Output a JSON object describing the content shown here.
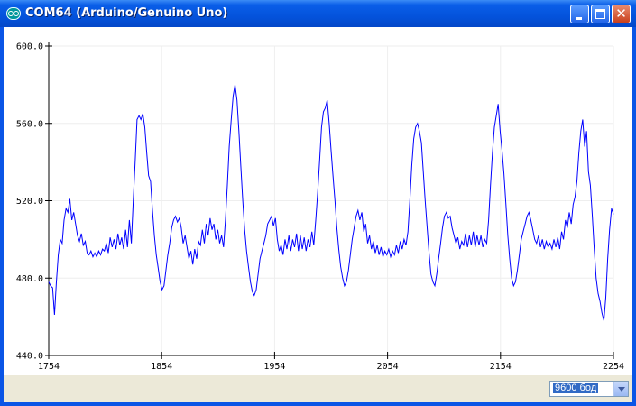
{
  "window": {
    "title": "COM64 (Arduino/Genuino Uno)",
    "icon": "arduino-icon"
  },
  "controls": {
    "minimize": "minimize-icon",
    "maximize": "maximize-icon",
    "close": "close-icon"
  },
  "status": {
    "baud_rate": "9600 бод"
  },
  "colors": {
    "line": "#0000ff",
    "grid": "#eeeeee",
    "titlebar": "#0453dc"
  },
  "chart_data": {
    "type": "line",
    "xlim": [
      1754,
      2254
    ],
    "ylim": [
      440,
      600
    ],
    "x_ticks": [
      "1754",
      "1854",
      "1954",
      "2054",
      "2154",
      "2254"
    ],
    "y_ticks": [
      "440.0",
      "480.0",
      "520.0",
      "560.0",
      "600.0"
    ],
    "grid": true,
    "series": [
      {
        "values": [
          478,
          476,
          475,
          461,
          478,
          492,
          500,
          498,
          510,
          516,
          514,
          521,
          510,
          514,
          508,
          502,
          499,
          503,
          497,
          499,
          493,
          492,
          494,
          491,
          493,
          491,
          494,
          492,
          495,
          494,
          498,
          493,
          501,
          496,
          500,
          495,
          503,
          497,
          501,
          495,
          505,
          496,
          510,
          498,
          520,
          540,
          562,
          564,
          562,
          565,
          558,
          545,
          533,
          530,
          515,
          502,
          492,
          485,
          478,
          474,
          476,
          484,
          492,
          498,
          506,
          510,
          512,
          509,
          511,
          506,
          498,
          502,
          496,
          490,
          494,
          487,
          495,
          490,
          499,
          497,
          505,
          498,
          508,
          502,
          511,
          505,
          508,
          500,
          505,
          498,
          502,
          496,
          510,
          528,
          548,
          562,
          574,
          580,
          572,
          556,
          538,
          520,
          505,
          494,
          486,
          478,
          473,
          471,
          474,
          482,
          490,
          494,
          498,
          502,
          508,
          510,
          512,
          507,
          511,
          500,
          494,
          497,
          492,
          500,
          495,
          502,
          494,
          500,
          496,
          503,
          494,
          502,
          495,
          501,
          494,
          500,
          496,
          504,
          497,
          510,
          524,
          540,
          558,
          566,
          568,
          572,
          560,
          546,
          533,
          520,
          506,
          495,
          486,
          480,
          476,
          478,
          484,
          492,
          500,
          506,
          512,
          515,
          510,
          514,
          504,
          508,
          498,
          502,
          495,
          499,
          493,
          497,
          492,
          496,
          491,
          494,
          492,
          495,
          491,
          494,
          492,
          497,
          493,
          499,
          495,
          500,
          497,
          504,
          520,
          538,
          552,
          558,
          560,
          556,
          550,
          535,
          520,
          506,
          493,
          482,
          478,
          476,
          482,
          490,
          498,
          506,
          512,
          514,
          511,
          512,
          506,
          502,
          498,
          501,
          495,
          499,
          497,
          503,
          496,
          502,
          497,
          504,
          496,
          502,
          497,
          502,
          496,
          500,
          498,
          510,
          528,
          545,
          558,
          564,
          570,
          556,
          546,
          534,
          518,
          502,
          490,
          480,
          476,
          478,
          484,
          492,
          500,
          504,
          508,
          512,
          514,
          510,
          505,
          500,
          498,
          502,
          496,
          500,
          495,
          499,
          496,
          498,
          495,
          500,
          496,
          501,
          495,
          504,
          500,
          510,
          506,
          514,
          508,
          518,
          522,
          530,
          545,
          556,
          562,
          548,
          556,
          535,
          528,
          512,
          495,
          480,
          472,
          468,
          462,
          458,
          470,
          490,
          505,
          516,
          513
        ]
      }
    ]
  }
}
